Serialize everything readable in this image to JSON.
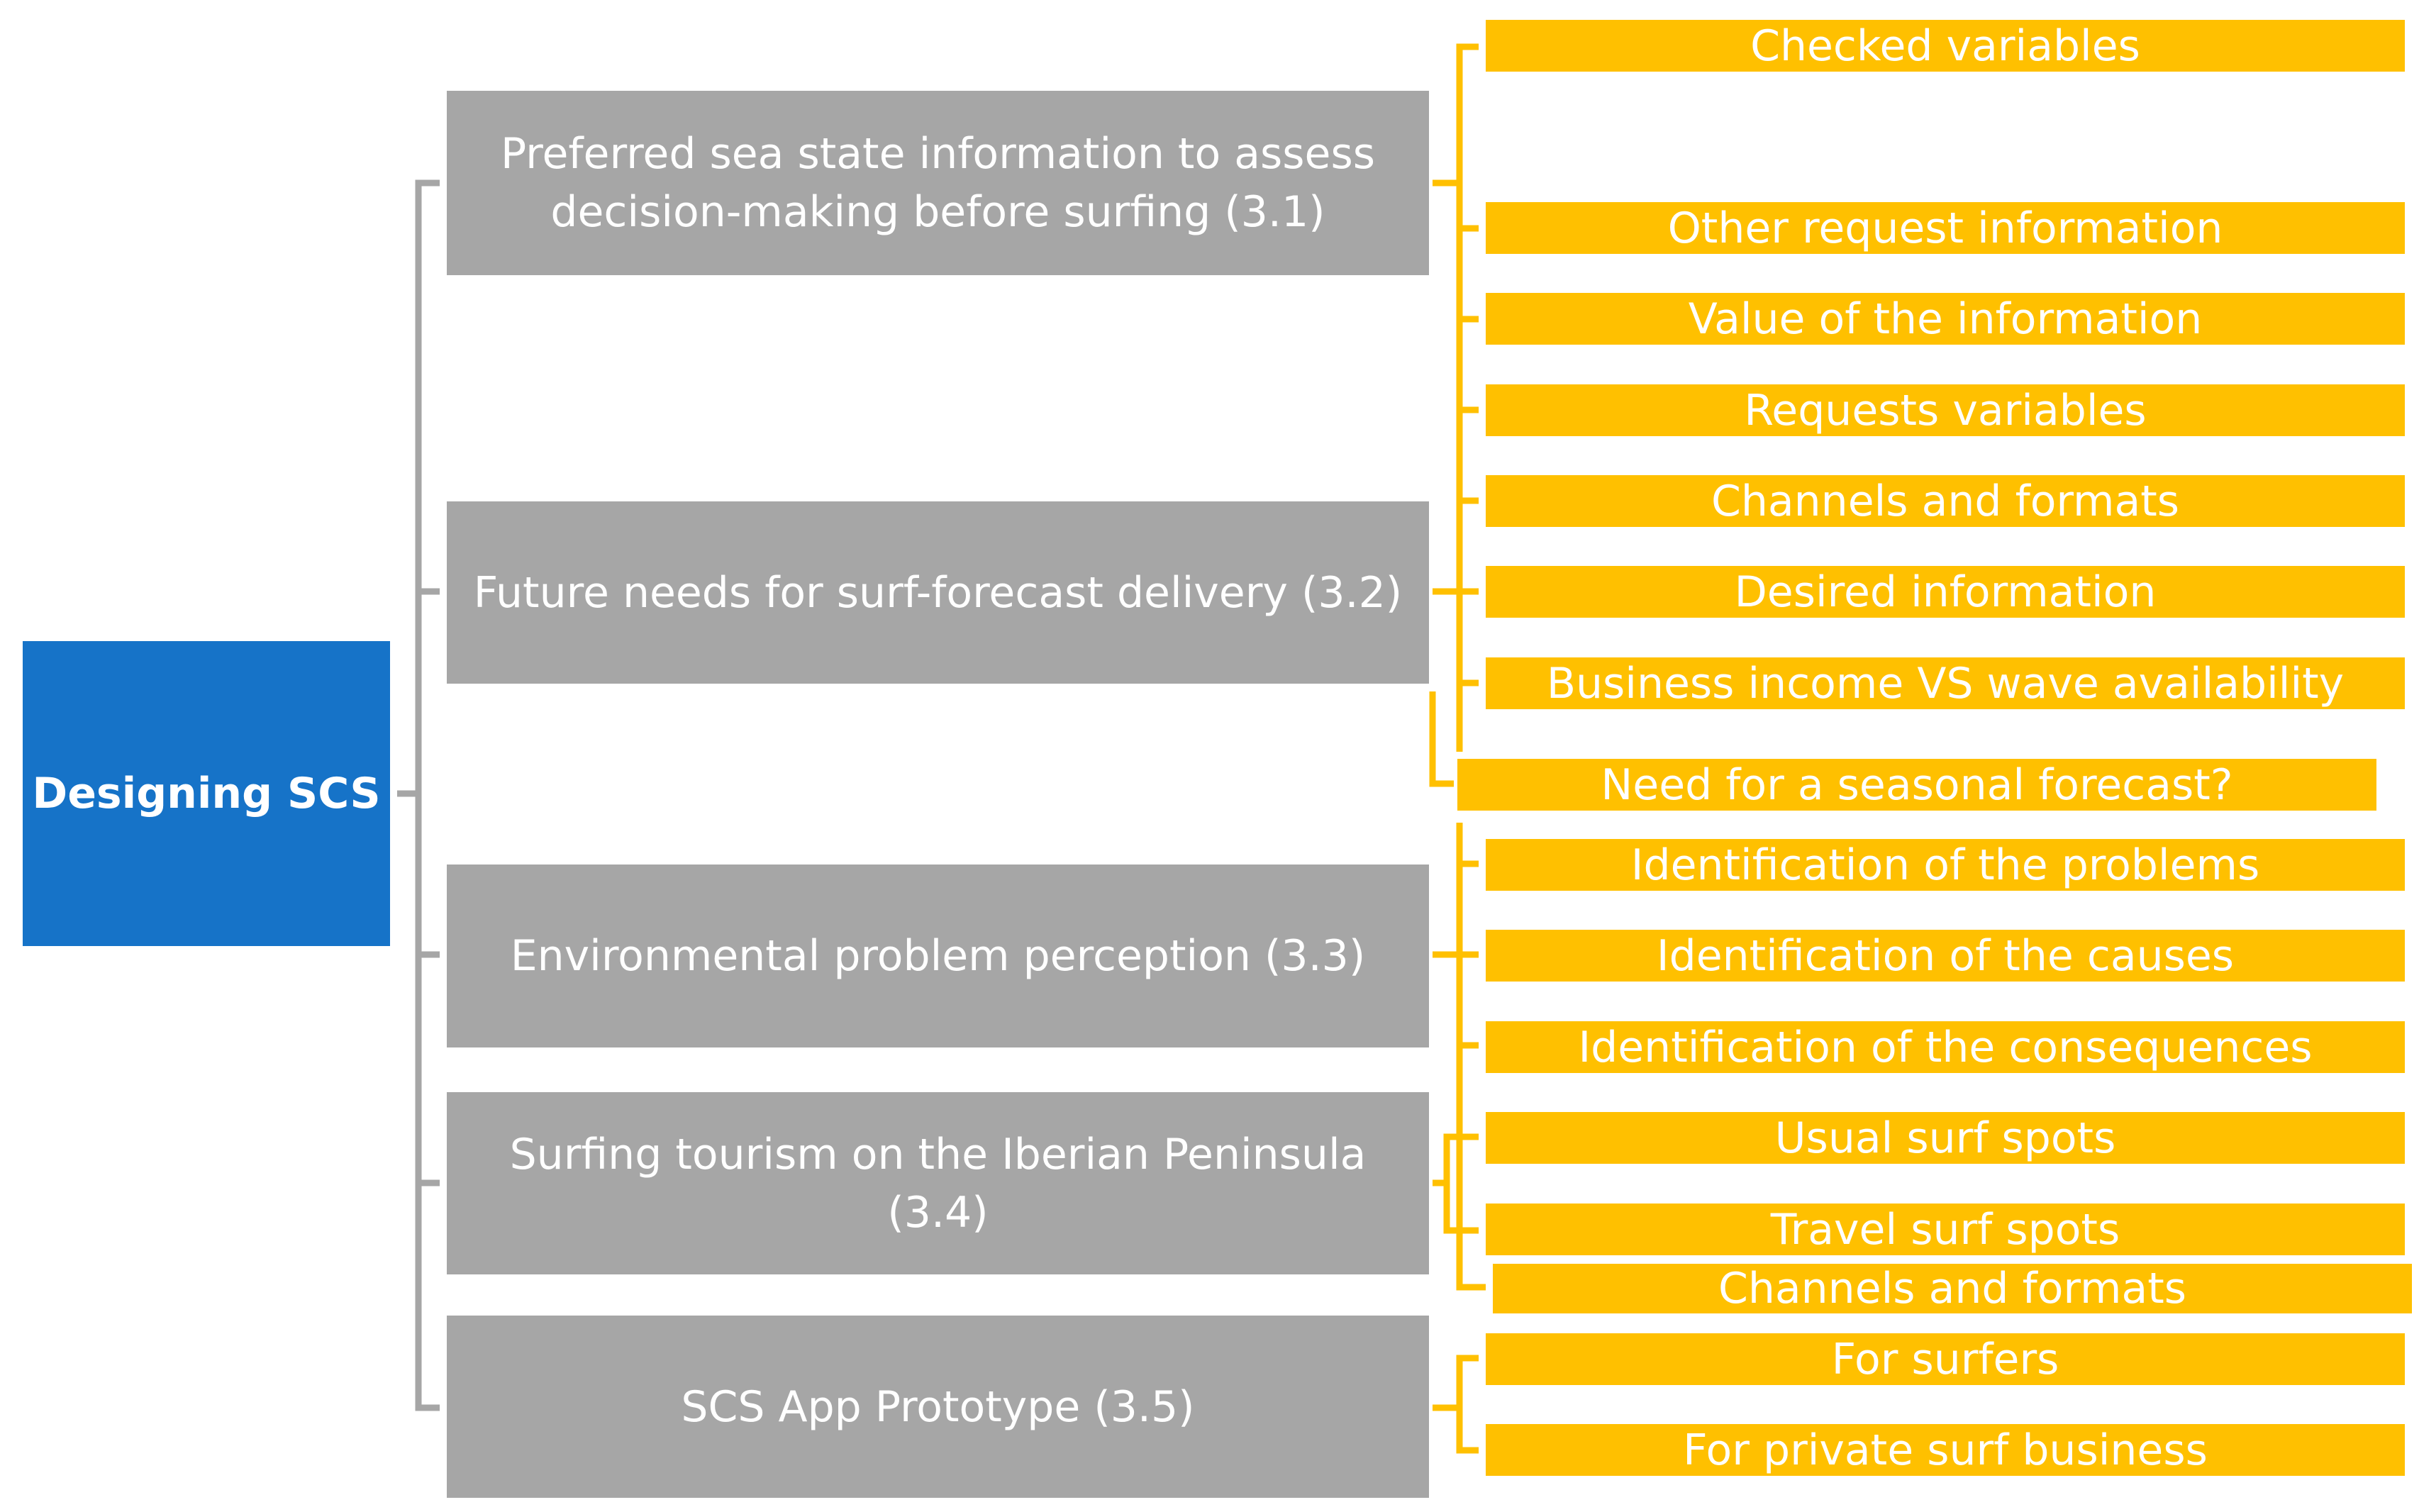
{
  "root": {
    "label": "Designing SCS"
  },
  "topics": [
    {
      "id": "t1",
      "label": "Preferred sea state information to assess decision-making before surfing (3.1)"
    },
    {
      "id": "t2",
      "label": "Future needs for surf-forecast delivery (3.2)"
    },
    {
      "id": "t3",
      "label": "Environmental problem perception (3.3)"
    },
    {
      "id": "t4",
      "label": "Surfing tourism on the Iberian Peninsula (3.4)"
    },
    {
      "id": "t5",
      "label": "SCS App Prototype (3.5)"
    }
  ],
  "leaves": [
    "Checked variables",
    "Other request information",
    "Value of the information",
    "Requests variables",
    "Channels and formats",
    "Desired information",
    "Business income VS wave availability",
    "Need for a seasonal forecast?",
    "Identification of the problems",
    "Identification of the causes",
    "Identification of the consequences",
    "Usual surf spots",
    "Travel surf spots",
    "Channels and formats",
    "For surfers",
    "For private surf business"
  ],
  "colors": {
    "root": "#1673c8",
    "topic": "#a6a6a6",
    "leaf": "#ffc000",
    "text": "#ffffff"
  }
}
